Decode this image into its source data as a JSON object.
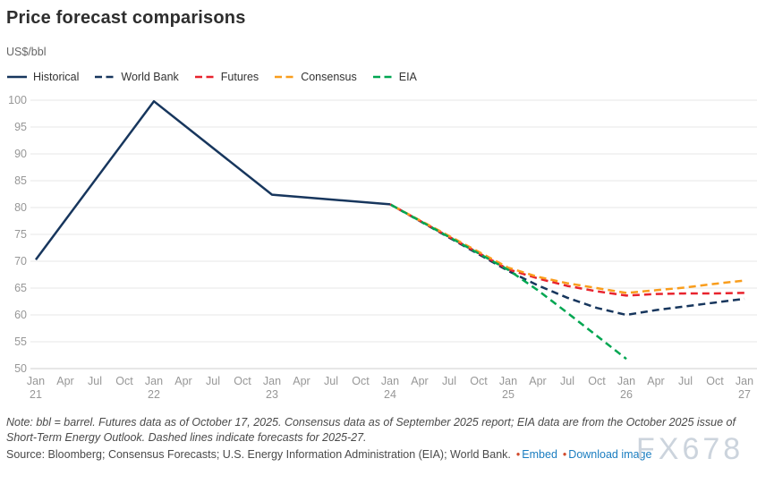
{
  "title": "Price forecast comparisons",
  "subtitle": "US$/bbl",
  "legend": [
    {
      "label": "Historical",
      "color": "#17365d",
      "dashed": false
    },
    {
      "label": "World Bank",
      "color": "#17365d",
      "dashed": true
    },
    {
      "label": "Futures",
      "color": "#e8232d",
      "dashed": true
    },
    {
      "label": "Consensus",
      "color": "#f99d1c",
      "dashed": true
    },
    {
      "label": "EIA",
      "color": "#00a651",
      "dashed": true
    }
  ],
  "chart_data": {
    "type": "line",
    "title": "Price forecast comparisons",
    "ylabel": "US$/bbl",
    "ylim": [
      50,
      100
    ],
    "yticks": [
      50,
      55,
      60,
      65,
      70,
      75,
      80,
      85,
      90,
      95,
      100
    ],
    "grid": true,
    "legend_position": "top",
    "x_labels": [
      {
        "m": "Jan",
        "y": "21"
      },
      {
        "m": "Apr"
      },
      {
        "m": "Jul"
      },
      {
        "m": "Oct"
      },
      {
        "m": "Jan",
        "y": "22"
      },
      {
        "m": "Apr"
      },
      {
        "m": "Jul"
      },
      {
        "m": "Oct"
      },
      {
        "m": "Jan",
        "y": "23"
      },
      {
        "m": "Apr"
      },
      {
        "m": "Jul"
      },
      {
        "m": "Oct"
      },
      {
        "m": "Jan",
        "y": "24"
      },
      {
        "m": "Apr"
      },
      {
        "m": "Jul"
      },
      {
        "m": "Oct"
      },
      {
        "m": "Jan",
        "y": "25"
      },
      {
        "m": "Apr"
      },
      {
        "m": "Jul"
      },
      {
        "m": "Oct"
      },
      {
        "m": "Jan",
        "y": "26"
      },
      {
        "m": "Apr"
      },
      {
        "m": "Jul"
      },
      {
        "m": "Oct"
      },
      {
        "m": "Jan",
        "y": "27"
      }
    ],
    "series": [
      {
        "name": "Historical",
        "color": "#17365d",
        "dashed": false,
        "points": [
          [
            0,
            70.3
          ],
          [
            4,
            99.8
          ],
          [
            8,
            82.4
          ],
          [
            12,
            80.6
          ]
        ]
      },
      {
        "name": "World Bank",
        "color": "#17365d",
        "dashed": true,
        "points": [
          [
            12,
            80.6
          ],
          [
            16,
            68.2
          ],
          [
            17,
            65.5
          ],
          [
            18,
            63.2
          ],
          [
            19,
            61.3
          ],
          [
            20,
            60.0
          ],
          [
            21,
            60.9
          ],
          [
            22,
            61.6
          ],
          [
            23,
            62.3
          ],
          [
            24,
            63.0
          ]
        ]
      },
      {
        "name": "Futures",
        "color": "#e8232d",
        "dashed": true,
        "points": [
          [
            12,
            80.6
          ],
          [
            16,
            68.5
          ],
          [
            17,
            66.8
          ],
          [
            18,
            65.4
          ],
          [
            19,
            64.4
          ],
          [
            20,
            63.6
          ],
          [
            21,
            63.9
          ],
          [
            22,
            64.0
          ],
          [
            23,
            64.0
          ],
          [
            24,
            64.1
          ]
        ]
      },
      {
        "name": "Consensus",
        "color": "#f99d1c",
        "dashed": true,
        "points": [
          [
            12,
            80.6
          ],
          [
            16,
            68.8
          ],
          [
            17,
            67.1
          ],
          [
            18,
            65.9
          ],
          [
            19,
            65.0
          ],
          [
            20,
            64.1
          ],
          [
            21,
            64.6
          ],
          [
            22,
            65.1
          ],
          [
            23,
            65.8
          ],
          [
            24,
            66.4
          ]
        ]
      },
      {
        "name": "EIA",
        "color": "#00a651",
        "dashed": true,
        "points": [
          [
            12,
            80.6
          ],
          [
            16,
            68.4
          ],
          [
            17,
            64.6
          ],
          [
            18,
            60.4
          ],
          [
            19,
            56.1
          ],
          [
            20,
            51.8
          ]
        ]
      }
    ]
  },
  "note": "Note: bbl = barrel. Futures data as of October 17, 2025. Consensus data as of September 2025 report; EIA data are from the October 2025 issue of Short-Term Energy Outlook. Dashed lines indicate forecasts for 2025-27.",
  "source": {
    "text": "Source: Bloomberg; Consensus Forecasts; U.S. Energy Information Administration (EIA); World Bank.",
    "bullet": "•",
    "links": [
      "Embed",
      "Download image"
    ]
  },
  "watermark": "FX678"
}
